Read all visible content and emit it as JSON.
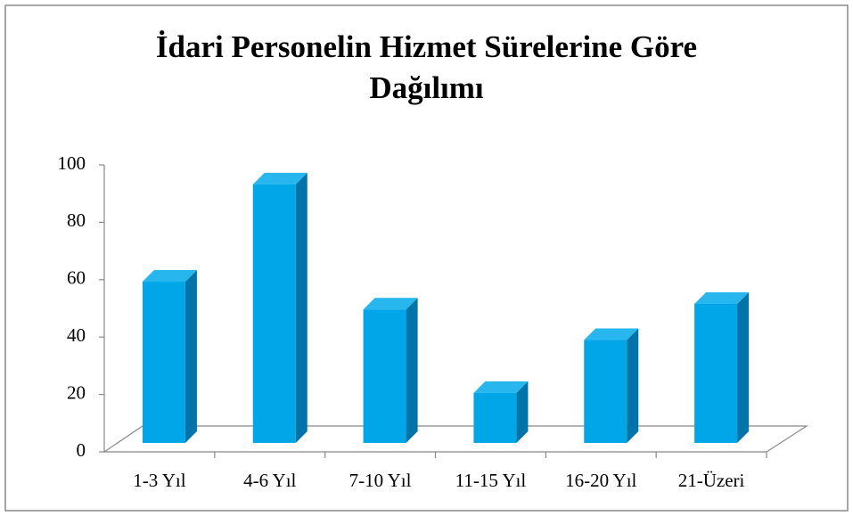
{
  "chart_data": {
    "type": "bar3d",
    "title": "İdari Personelin Hizmet Sürelerine Göre Dağılımı",
    "categories": [
      "1-3 Yıl",
      "4-6 Yıl",
      "7-10 Yıl",
      "11-15 Yıl",
      "16-20 Yıl",
      "21-Üzeri"
    ],
    "values": [
      58,
      93,
      48,
      18,
      37,
      50
    ],
    "color": "#00a6e8",
    "ylim": [
      0,
      100
    ],
    "yticks": [
      0,
      20,
      40,
      60,
      80,
      100
    ],
    "grid": false
  }
}
